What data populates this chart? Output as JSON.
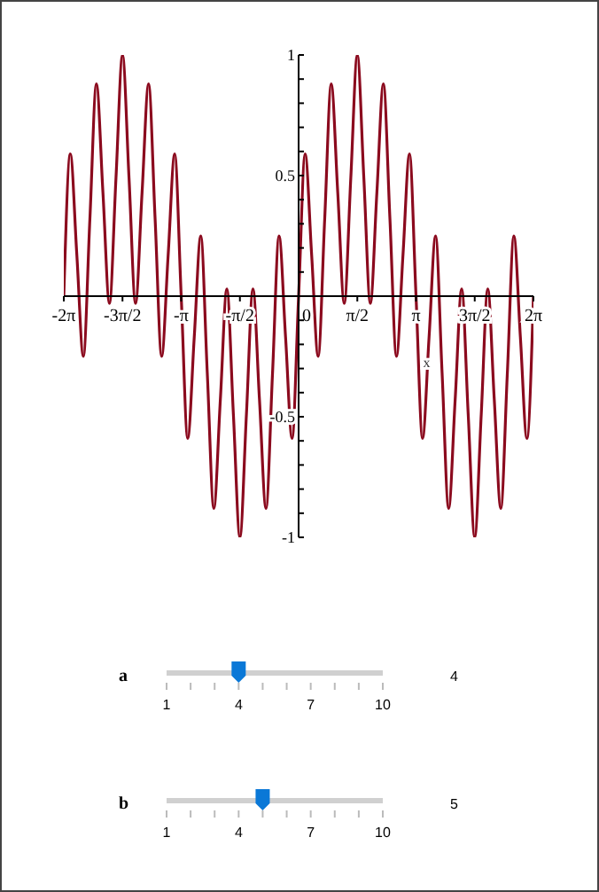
{
  "chart_data": {
    "type": "line",
    "xlabel": "x",
    "x": [
      -6.2832,
      -6.1087,
      -5.9341,
      -5.7596,
      -5.5851,
      -5.4105,
      -5.236,
      -5.0615,
      -4.8869,
      -4.7124,
      -4.5379,
      -4.3633,
      -4.1888,
      -4.0143,
      -3.8397,
      -3.6652,
      -3.4907,
      -3.3161,
      -3.1416,
      -2.9671,
      -2.7925,
      -2.618,
      -2.4435,
      -2.2689,
      -2.0944,
      -1.9199,
      -1.7453,
      -1.5708,
      -1.3963,
      -1.2217,
      -1.0472,
      -0.8727,
      -0.6981,
      -0.5236,
      -0.3491,
      -0.1745,
      0,
      0.1745,
      0.3491,
      0.5236,
      0.6981,
      0.8727,
      1.0472,
      1.2217,
      1.3963,
      1.5708,
      1.7453,
      1.9199,
      2.0944,
      2.2689,
      2.4435,
      2.618,
      2.7925,
      2.9671,
      3.1416,
      3.3161,
      3.4907,
      3.6652,
      3.8397,
      4.0143,
      4.1888,
      4.3633,
      4.5379,
      4.7124,
      4.8869,
      5.0615,
      5.236,
      5.4105,
      5.5851,
      5.7596,
      5.9341,
      6.1087,
      6.2832
    ],
    "series": [
      {
        "color": "#8b0a1e",
        "values": [
          0,
          0.59,
          0.17,
          -0.25,
          0.32,
          0.88,
          0.43,
          -0.03,
          0.49,
          1,
          0.49,
          -0.03,
          0.43,
          0.88,
          0.32,
          -0.25,
          0.17,
          0.59,
          0,
          -0.59,
          -0.17,
          0.25,
          -0.32,
          -0.88,
          -0.43,
          0.03,
          -0.49,
          -1,
          -0.49,
          0.03,
          -0.43,
          -0.88,
          -0.32,
          0.25,
          -0.17,
          -0.59,
          0,
          0.59,
          0.17,
          -0.25,
          0.32,
          0.88,
          0.43,
          -0.03,
          0.49,
          1,
          0.49,
          -0.03,
          0.43,
          0.88,
          0.32,
          -0.25,
          0.17,
          0.59,
          0,
          -0.59,
          -0.17,
          0.25,
          -0.32,
          -0.88,
          -0.43,
          0.03,
          -0.49,
          -1,
          -0.49,
          0.03,
          -0.43,
          -0.88,
          -0.32,
          0.25,
          -0.17,
          -0.59,
          0
        ]
      }
    ],
    "xlim": [
      -6.2832,
      6.2832
    ],
    "xticks": [
      {
        "value": -6.2832,
        "label": "-2π"
      },
      {
        "value": -4.7124,
        "label": "-3π/2"
      },
      {
        "value": -3.1416,
        "label": "-π"
      },
      {
        "value": -1.5708,
        "label": "-π/2"
      },
      0,
      {
        "value": 1.5708,
        "label": "π/2"
      },
      {
        "value": 3.1416,
        "label": "π"
      },
      {
        "value": 4.7124,
        "label": "3π/2"
      },
      {
        "value": 6.2832,
        "label": "2π"
      }
    ],
    "ylim": [
      -1,
      1
    ],
    "yticks": [
      -1,
      {
        "value": -0.9,
        "label": null
      },
      {
        "value": -0.8,
        "label": null
      },
      {
        "value": -0.7,
        "label": null
      },
      {
        "value": -0.6,
        "label": null
      },
      -0.5,
      {
        "value": -0.4,
        "label": null
      },
      {
        "value": -0.3,
        "label": null
      },
      {
        "value": -0.2,
        "label": null
      },
      {
        "value": -0.1,
        "label": null
      },
      {
        "value": 0.1,
        "label": null
      },
      {
        "value": 0.2,
        "label": null
      },
      {
        "value": 0.3,
        "label": null
      },
      {
        "value": 0.4,
        "label": null
      },
      0.5,
      {
        "value": 0.6,
        "label": null
      },
      {
        "value": 0.7,
        "label": null
      },
      {
        "value": 0.8,
        "label": null
      },
      {
        "value": 0.9,
        "label": null
      },
      1
    ],
    "grid": false,
    "legend": false,
    "marker": "none",
    "line_style": "solid",
    "annotations": [
      "a",
      "1",
      "4",
      "7",
      "10",
      "4",
      "b",
      "1",
      "4",
      "7",
      "10",
      "5"
    ]
  }
}
